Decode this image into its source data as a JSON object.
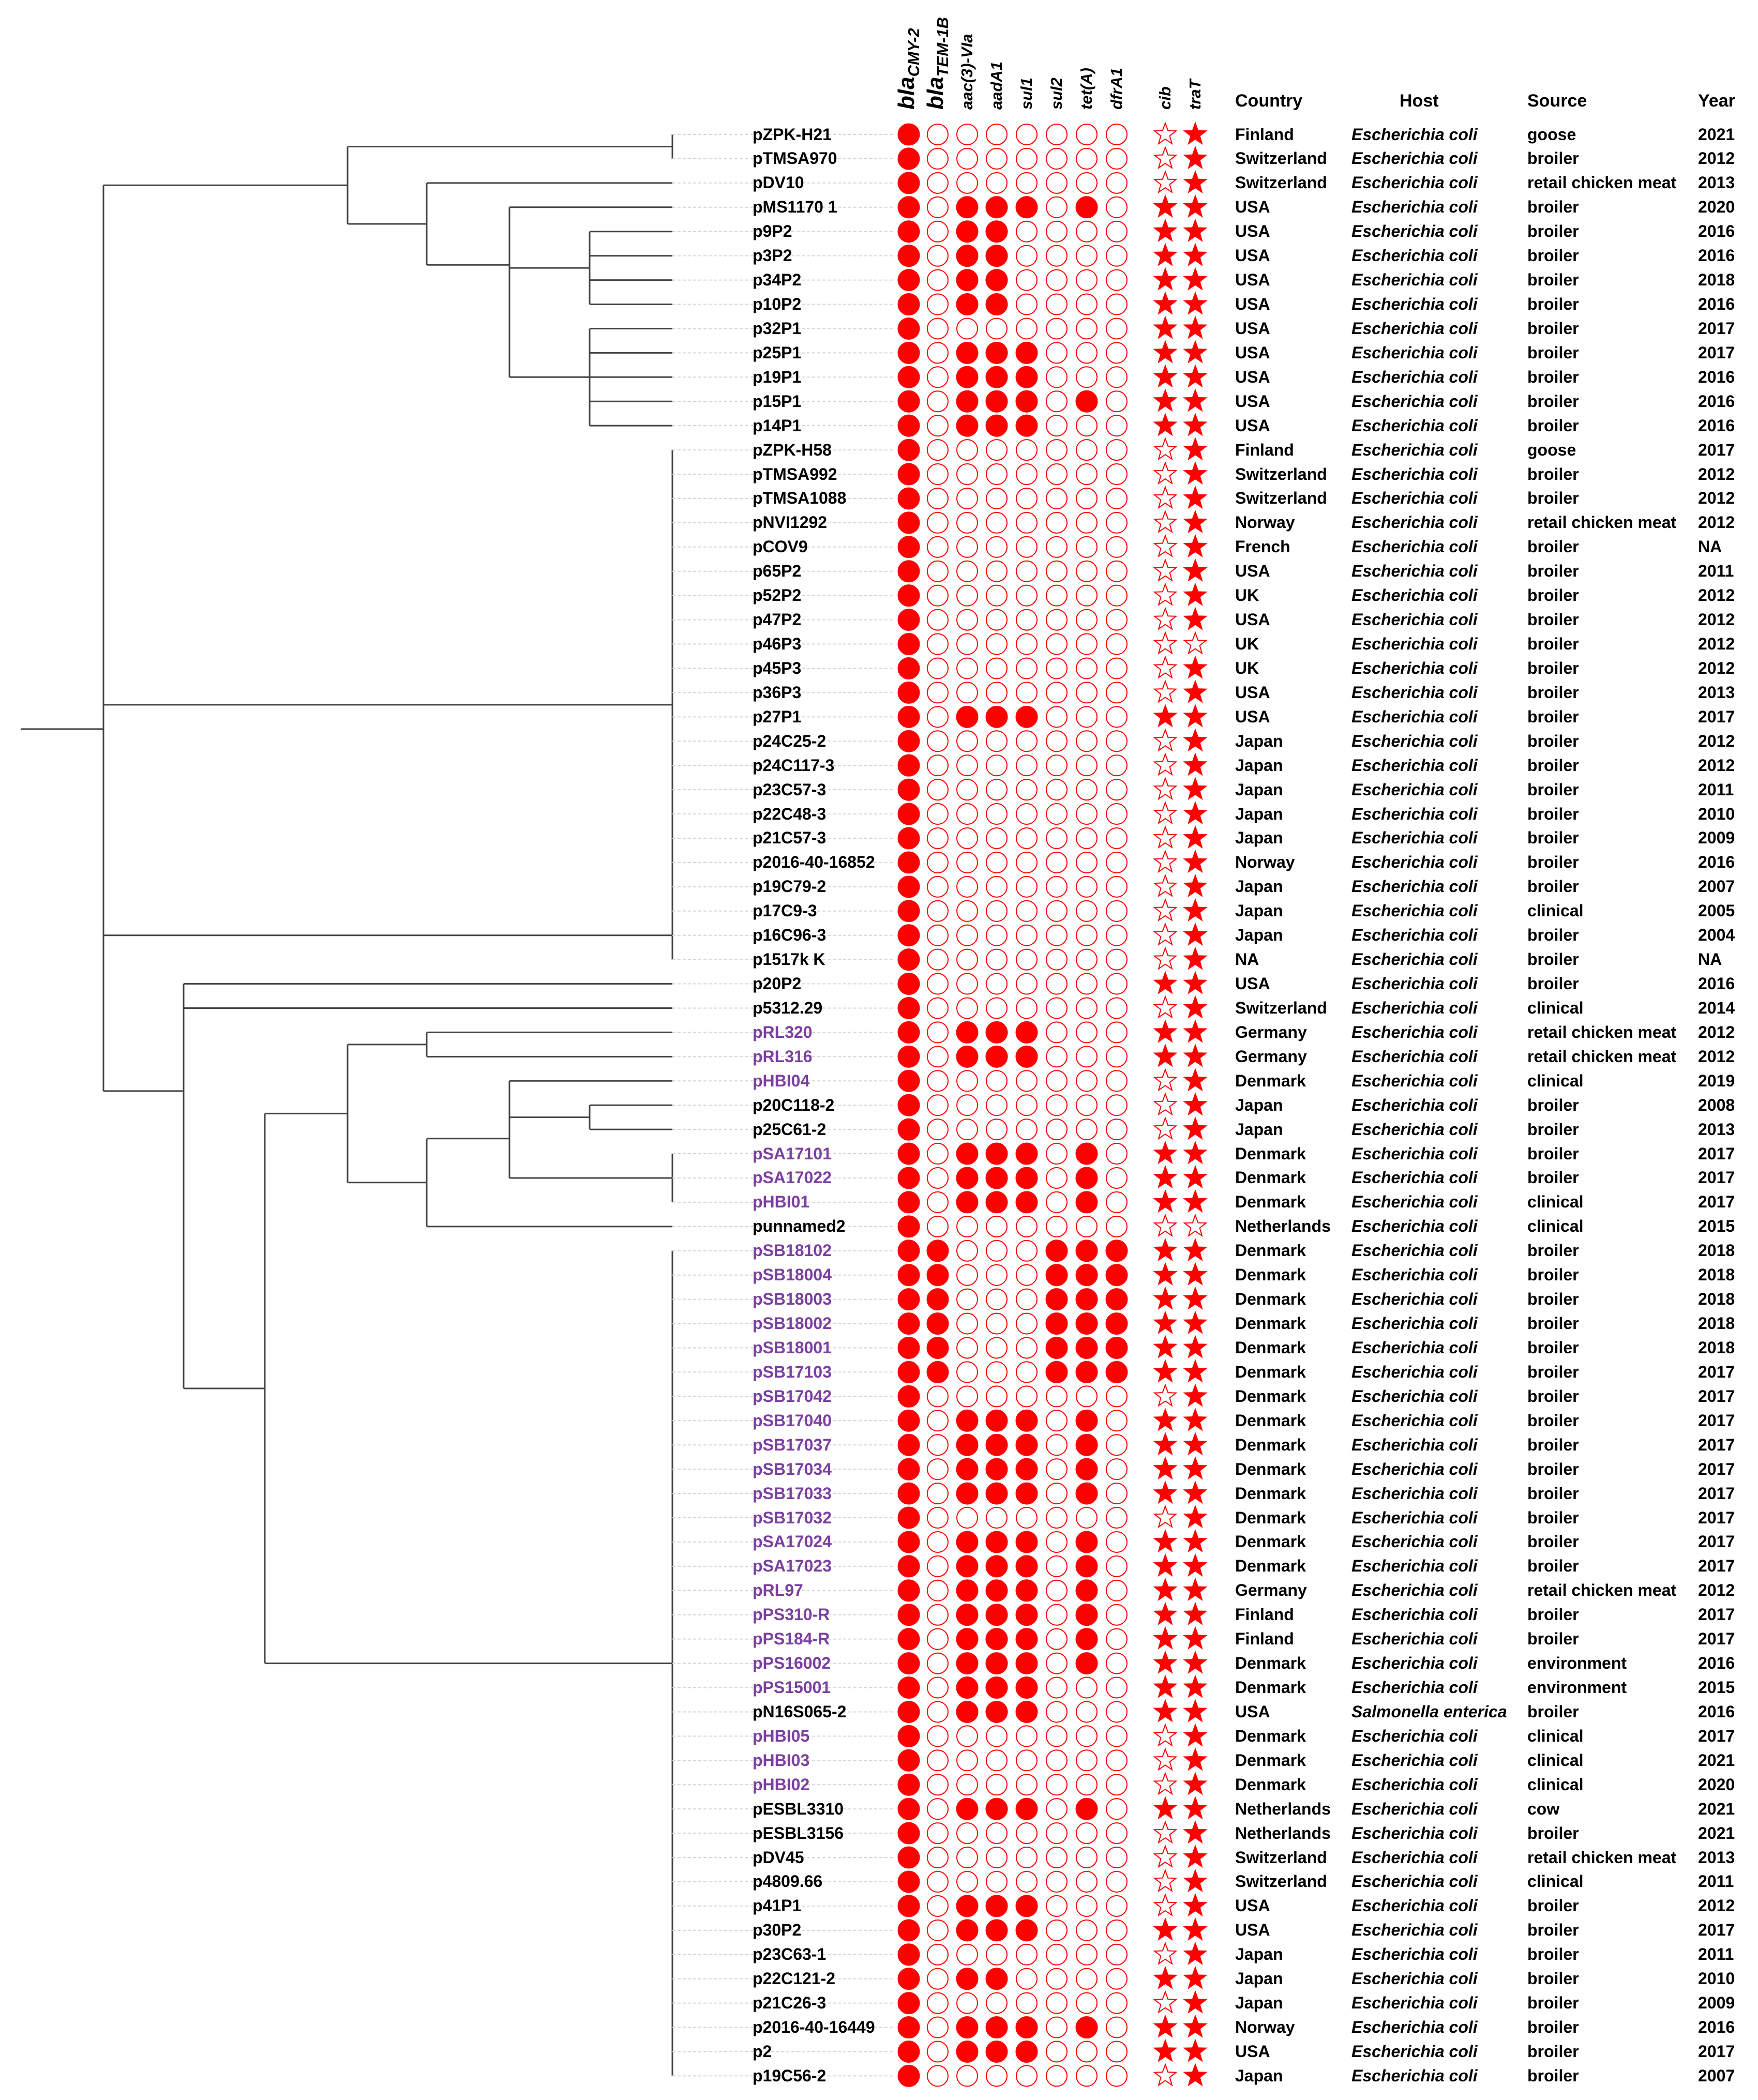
{
  "colors": {
    "mark": "#ff0000",
    "highlight_label": "#7b3fa0",
    "default_label": "#000000",
    "tree_line": "#444444",
    "guide_line": "#d6d6d6"
  },
  "gene_headers": [
    {
      "main": "bla",
      "sub": "CMY-2",
      "size": "large"
    },
    {
      "main": "bla",
      "sub": "TEM-1B",
      "size": "large"
    },
    {
      "main": "aac(3)-VIa",
      "sub": "",
      "size": "small"
    },
    {
      "main": "aadA1",
      "sub": "",
      "size": "small"
    },
    {
      "main": "sul1",
      "sub": "",
      "size": "small"
    },
    {
      "main": "sul2",
      "sub": "",
      "size": "small"
    },
    {
      "main": "tet(A)",
      "sub": "",
      "size": "small"
    },
    {
      "main": "dfrA1",
      "sub": "",
      "size": "small"
    }
  ],
  "marker_headers": [
    "cib",
    "traT"
  ],
  "meta_headers": {
    "country": "Country",
    "host": "Host",
    "source": "Source",
    "year": "Year"
  },
  "icons": {
    "filled": "filled-circle-icon",
    "empty": "empty-circle-icon",
    "star_filled": "filled-star-icon",
    "star_empty": "empty-star-icon"
  },
  "rows": [
    {
      "name": "pZPK-H21",
      "hl": false,
      "genes": "10000000",
      "cib": 0,
      "traT": 1,
      "country": "Finland",
      "host": "Escherichia coli",
      "source": "goose",
      "year": "2021"
    },
    {
      "name": "pTMSA970",
      "hl": false,
      "genes": "10000000",
      "cib": 0,
      "traT": 1,
      "country": "Switzerland",
      "host": "Escherichia coli",
      "source": "broiler",
      "year": "2012"
    },
    {
      "name": "pDV10",
      "hl": false,
      "genes": "10000000",
      "cib": 0,
      "traT": 1,
      "country": "Switzerland",
      "host": "Escherichia coli",
      "source": "retail chicken meat",
      "year": "2013"
    },
    {
      "name": "pMS1170 1",
      "hl": false,
      "genes": "10111010",
      "cib": 1,
      "traT": 1,
      "country": "USA",
      "host": "Escherichia coli",
      "source": "broiler",
      "year": "2020"
    },
    {
      "name": "p9P2",
      "hl": false,
      "genes": "10110000",
      "cib": 1,
      "traT": 1,
      "country": "USA",
      "host": "Escherichia coli",
      "source": "broiler",
      "year": "2016"
    },
    {
      "name": "p3P2",
      "hl": false,
      "genes": "10110000",
      "cib": 1,
      "traT": 1,
      "country": "USA",
      "host": "Escherichia coli",
      "source": "broiler",
      "year": "2016"
    },
    {
      "name": "p34P2",
      "hl": false,
      "genes": "10110000",
      "cib": 1,
      "traT": 1,
      "country": "USA",
      "host": "Escherichia coli",
      "source": "broiler",
      "year": "2018"
    },
    {
      "name": "p10P2",
      "hl": false,
      "genes": "10110000",
      "cib": 1,
      "traT": 1,
      "country": "USA",
      "host": "Escherichia coli",
      "source": "broiler",
      "year": "2016"
    },
    {
      "name": "p32P1",
      "hl": false,
      "genes": "10000000",
      "cib": 1,
      "traT": 1,
      "country": "USA",
      "host": "Escherichia coli",
      "source": "broiler",
      "year": "2017"
    },
    {
      "name": "p25P1",
      "hl": false,
      "genes": "10111000",
      "cib": 1,
      "traT": 1,
      "country": "USA",
      "host": "Escherichia coli",
      "source": "broiler",
      "year": "2017"
    },
    {
      "name": "p19P1",
      "hl": false,
      "genes": "10111000",
      "cib": 1,
      "traT": 1,
      "country": "USA",
      "host": "Escherichia coli",
      "source": "broiler",
      "year": "2016"
    },
    {
      "name": "p15P1",
      "hl": false,
      "genes": "10111010",
      "cib": 1,
      "traT": 1,
      "country": "USA",
      "host": "Escherichia coli",
      "source": "broiler",
      "year": "2016"
    },
    {
      "name": "p14P1",
      "hl": false,
      "genes": "10111000",
      "cib": 1,
      "traT": 1,
      "country": "USA",
      "host": "Escherichia coli",
      "source": "broiler",
      "year": "2016"
    },
    {
      "name": "pZPK-H58",
      "hl": false,
      "genes": "10000000",
      "cib": 0,
      "traT": 1,
      "country": "Finland",
      "host": "Escherichia coli",
      "source": "goose",
      "year": "2017"
    },
    {
      "name": "pTMSA992",
      "hl": false,
      "genes": "10000000",
      "cib": 0,
      "traT": 1,
      "country": "Switzerland",
      "host": "Escherichia coli",
      "source": "broiler",
      "year": "2012"
    },
    {
      "name": "pTMSA1088",
      "hl": false,
      "genes": "10000000",
      "cib": 0,
      "traT": 1,
      "country": "Switzerland",
      "host": "Escherichia coli",
      "source": "broiler",
      "year": "2012"
    },
    {
      "name": "pNVI1292",
      "hl": false,
      "genes": "10000000",
      "cib": 0,
      "traT": 1,
      "country": "Norway",
      "host": "Escherichia coli",
      "source": "retail chicken meat",
      "year": "2012"
    },
    {
      "name": "pCOV9",
      "hl": false,
      "genes": "10000000",
      "cib": 0,
      "traT": 1,
      "country": "French",
      "host": "Escherichia coli",
      "source": "broiler",
      "year": "NA"
    },
    {
      "name": "p65P2",
      "hl": false,
      "genes": "10000000",
      "cib": 0,
      "traT": 1,
      "country": "USA",
      "host": "Escherichia coli",
      "source": "broiler",
      "year": "2011"
    },
    {
      "name": "p52P2",
      "hl": false,
      "genes": "10000000",
      "cib": 0,
      "traT": 1,
      "country": "UK",
      "host": "Escherichia coli",
      "source": "broiler",
      "year": "2012"
    },
    {
      "name": "p47P2",
      "hl": false,
      "genes": "10000000",
      "cib": 0,
      "traT": 1,
      "country": "USA",
      "host": "Escherichia coli",
      "source": "broiler",
      "year": "2012"
    },
    {
      "name": "p46P3",
      "hl": false,
      "genes": "10000000",
      "cib": 0,
      "traT": 0,
      "country": "UK",
      "host": "Escherichia coli",
      "source": "broiler",
      "year": "2012"
    },
    {
      "name": "p45P3",
      "hl": false,
      "genes": "10000000",
      "cib": 0,
      "traT": 1,
      "country": "UK",
      "host": "Escherichia coli",
      "source": "broiler",
      "year": "2012"
    },
    {
      "name": "p36P3",
      "hl": false,
      "genes": "10000000",
      "cib": 0,
      "traT": 1,
      "country": "USA",
      "host": "Escherichia coli",
      "source": "broiler",
      "year": "2013"
    },
    {
      "name": "p27P1",
      "hl": false,
      "genes": "10111000",
      "cib": 1,
      "traT": 1,
      "country": "USA",
      "host": "Escherichia coli",
      "source": "broiler",
      "year": "2017"
    },
    {
      "name": "p24C25-2",
      "hl": false,
      "genes": "10000000",
      "cib": 0,
      "traT": 1,
      "country": "Japan",
      "host": "Escherichia coli",
      "source": "broiler",
      "year": "2012"
    },
    {
      "name": "p24C117-3",
      "hl": false,
      "genes": "10000000",
      "cib": 0,
      "traT": 1,
      "country": "Japan",
      "host": "Escherichia coli",
      "source": "broiler",
      "year": "2012"
    },
    {
      "name": "p23C57-3",
      "hl": false,
      "genes": "10000000",
      "cib": 0,
      "traT": 1,
      "country": "Japan",
      "host": "Escherichia coli",
      "source": "broiler",
      "year": "2011"
    },
    {
      "name": "p22C48-3",
      "hl": false,
      "genes": "10000000",
      "cib": 0,
      "traT": 1,
      "country": "Japan",
      "host": "Escherichia coli",
      "source": "broiler",
      "year": "2010"
    },
    {
      "name": "p21C57-3",
      "hl": false,
      "genes": "10000000",
      "cib": 0,
      "traT": 1,
      "country": "Japan",
      "host": "Escherichia coli",
      "source": "broiler",
      "year": "2009"
    },
    {
      "name": "p2016-40-16852",
      "hl": false,
      "genes": "10000000",
      "cib": 0,
      "traT": 1,
      "country": "Norway",
      "host": "Escherichia coli",
      "source": "broiler",
      "year": "2016"
    },
    {
      "name": "p19C79-2",
      "hl": false,
      "genes": "10000000",
      "cib": 0,
      "traT": 1,
      "country": "Japan",
      "host": "Escherichia coli",
      "source": "broiler",
      "year": "2007"
    },
    {
      "name": "p17C9-3",
      "hl": false,
      "genes": "10000000",
      "cib": 0,
      "traT": 1,
      "country": "Japan",
      "host": "Escherichia coli",
      "source": "clinical",
      "year": "2005"
    },
    {
      "name": "p16C96-3",
      "hl": false,
      "genes": "10000000",
      "cib": 0,
      "traT": 1,
      "country": "Japan",
      "host": "Escherichia coli",
      "source": "broiler",
      "year": "2004"
    },
    {
      "name": "p1517k K",
      "hl": false,
      "genes": "10000000",
      "cib": 0,
      "traT": 1,
      "country": "NA",
      "host": "Escherichia coli",
      "source": "broiler",
      "year": "NA"
    },
    {
      "name": "p20P2",
      "hl": false,
      "genes": "10000000",
      "cib": 1,
      "traT": 1,
      "country": "USA",
      "host": "Escherichia coli",
      "source": "broiler",
      "year": "2016"
    },
    {
      "name": "p5312.29",
      "hl": false,
      "genes": "10000000",
      "cib": 0,
      "traT": 1,
      "country": "Switzerland",
      "host": "Escherichia coli",
      "source": "clinical",
      "year": "2014"
    },
    {
      "name": "pRL320",
      "hl": true,
      "genes": "10111000",
      "cib": 1,
      "traT": 1,
      "country": "Germany",
      "host": "Escherichia coli",
      "source": "retail chicken meat",
      "year": "2012"
    },
    {
      "name": "pRL316",
      "hl": true,
      "genes": "10111000",
      "cib": 1,
      "traT": 1,
      "country": "Germany",
      "host": "Escherichia coli",
      "source": "retail chicken meat",
      "year": "2012"
    },
    {
      "name": "pHBI04",
      "hl": true,
      "genes": "10000000",
      "cib": 0,
      "traT": 1,
      "country": "Denmark",
      "host": "Escherichia coli",
      "source": "clinical",
      "year": "2019"
    },
    {
      "name": "p20C118-2",
      "hl": false,
      "genes": "10000000",
      "cib": 0,
      "traT": 1,
      "country": "Japan",
      "host": "Escherichia coli",
      "source": "broiler",
      "year": "2008"
    },
    {
      "name": "p25C61-2",
      "hl": false,
      "genes": "10000000",
      "cib": 0,
      "traT": 1,
      "country": "Japan",
      "host": "Escherichia coli",
      "source": "broiler",
      "year": "2013"
    },
    {
      "name": "pSA17101",
      "hl": true,
      "genes": "10111010",
      "cib": 1,
      "traT": 1,
      "country": "Denmark",
      "host": "Escherichia coli",
      "source": "broiler",
      "year": "2017"
    },
    {
      "name": "pSA17022",
      "hl": true,
      "genes": "10111010",
      "cib": 1,
      "traT": 1,
      "country": "Denmark",
      "host": "Escherichia coli",
      "source": "broiler",
      "year": "2017"
    },
    {
      "name": "pHBI01",
      "hl": true,
      "genes": "10111010",
      "cib": 1,
      "traT": 1,
      "country": "Denmark",
      "host": "Escherichia coli",
      "source": "clinical",
      "year": "2017"
    },
    {
      "name": "punnamed2",
      "hl": false,
      "genes": "10000000",
      "cib": 0,
      "traT": 0,
      "country": "Netherlands",
      "host": "Escherichia coli",
      "source": "clinical",
      "year": "2015"
    },
    {
      "name": "pSB18102",
      "hl": true,
      "genes": "11000111",
      "cib": 1,
      "traT": 1,
      "country": "Denmark",
      "host": "Escherichia coli",
      "source": "broiler",
      "year": "2018"
    },
    {
      "name": "pSB18004",
      "hl": true,
      "genes": "11000111",
      "cib": 1,
      "traT": 1,
      "country": "Denmark",
      "host": "Escherichia coli",
      "source": "broiler",
      "year": "2018"
    },
    {
      "name": "pSB18003",
      "hl": true,
      "genes": "11000111",
      "cib": 1,
      "traT": 1,
      "country": "Denmark",
      "host": "Escherichia coli",
      "source": "broiler",
      "year": "2018"
    },
    {
      "name": "pSB18002",
      "hl": true,
      "genes": "11000111",
      "cib": 1,
      "traT": 1,
      "country": "Denmark",
      "host": "Escherichia coli",
      "source": "broiler",
      "year": "2018"
    },
    {
      "name": "pSB18001",
      "hl": true,
      "genes": "11000111",
      "cib": 1,
      "traT": 1,
      "country": "Denmark",
      "host": "Escherichia coli",
      "source": "broiler",
      "year": "2018"
    },
    {
      "name": "pSB17103",
      "hl": true,
      "genes": "11000111",
      "cib": 1,
      "traT": 1,
      "country": "Denmark",
      "host": "Escherichia coli",
      "source": "broiler",
      "year": "2017"
    },
    {
      "name": "pSB17042",
      "hl": true,
      "genes": "10000000",
      "cib": 0,
      "traT": 1,
      "country": "Denmark",
      "host": "Escherichia coli",
      "source": "broiler",
      "year": "2017"
    },
    {
      "name": "pSB17040",
      "hl": true,
      "genes": "10111010",
      "cib": 1,
      "traT": 1,
      "country": "Denmark",
      "host": "Escherichia coli",
      "source": "broiler",
      "year": "2017"
    },
    {
      "name": "pSB17037",
      "hl": true,
      "genes": "10111010",
      "cib": 1,
      "traT": 1,
      "country": "Denmark",
      "host": "Escherichia coli",
      "source": "broiler",
      "year": "2017"
    },
    {
      "name": "pSB17034",
      "hl": true,
      "genes": "10111010",
      "cib": 1,
      "traT": 1,
      "country": "Denmark",
      "host": "Escherichia coli",
      "source": "broiler",
      "year": "2017"
    },
    {
      "name": "pSB17033",
      "hl": true,
      "genes": "10111010",
      "cib": 1,
      "traT": 1,
      "country": "Denmark",
      "host": "Escherichia coli",
      "source": "broiler",
      "year": "2017"
    },
    {
      "name": "pSB17032",
      "hl": true,
      "genes": "10000000",
      "cib": 0,
      "traT": 1,
      "country": "Denmark",
      "host": "Escherichia coli",
      "source": "broiler",
      "year": "2017"
    },
    {
      "name": "pSA17024",
      "hl": true,
      "genes": "10111010",
      "cib": 1,
      "traT": 1,
      "country": "Denmark",
      "host": "Escherichia coli",
      "source": "broiler",
      "year": "2017"
    },
    {
      "name": "pSA17023",
      "hl": true,
      "genes": "10111010",
      "cib": 1,
      "traT": 1,
      "country": "Denmark",
      "host": "Escherichia coli",
      "source": "broiler",
      "year": "2017"
    },
    {
      "name": "pRL97",
      "hl": true,
      "genes": "10111010",
      "cib": 1,
      "traT": 1,
      "country": "Germany",
      "host": "Escherichia coli",
      "source": "retail chicken meat",
      "year": "2012"
    },
    {
      "name": "pPS310-R",
      "hl": true,
      "genes": "10111010",
      "cib": 1,
      "traT": 1,
      "country": "Finland",
      "host": "Escherichia coli",
      "source": "broiler",
      "year": "2017"
    },
    {
      "name": "pPS184-R",
      "hl": true,
      "genes": "10111010",
      "cib": 1,
      "traT": 1,
      "country": "Finland",
      "host": "Escherichia coli",
      "source": "broiler",
      "year": "2017"
    },
    {
      "name": "pPS16002",
      "hl": true,
      "genes": "10111010",
      "cib": 1,
      "traT": 1,
      "country": "Denmark",
      "host": "Escherichia coli",
      "source": "environment",
      "year": "2016"
    },
    {
      "name": "pPS15001",
      "hl": true,
      "genes": "10111000",
      "cib": 1,
      "traT": 1,
      "country": "Denmark",
      "host": "Escherichia coli",
      "source": "environment",
      "year": "2015"
    },
    {
      "name": "pN16S065-2",
      "hl": false,
      "genes": "10111000",
      "cib": 1,
      "traT": 1,
      "country": "USA",
      "host": "Salmonella enterica",
      "source": "broiler",
      "year": "2016"
    },
    {
      "name": "pHBI05",
      "hl": true,
      "genes": "10000000",
      "cib": 0,
      "traT": 1,
      "country": "Denmark",
      "host": "Escherichia coli",
      "source": "clinical",
      "year": "2017"
    },
    {
      "name": "pHBI03",
      "hl": true,
      "genes": "10000000",
      "cib": 0,
      "traT": 1,
      "country": "Denmark",
      "host": "Escherichia coli",
      "source": "clinical",
      "year": "2021"
    },
    {
      "name": "pHBI02",
      "hl": true,
      "genes": "10000000",
      "cib": 0,
      "traT": 1,
      "country": "Denmark",
      "host": "Escherichia coli",
      "source": "clinical",
      "year": "2020"
    },
    {
      "name": "pESBL3310",
      "hl": false,
      "genes": "10111010",
      "cib": 1,
      "traT": 1,
      "country": "Netherlands",
      "host": "Escherichia coli",
      "source": "cow",
      "year": "2021"
    },
    {
      "name": "pESBL3156",
      "hl": false,
      "genes": "10000000",
      "cib": 0,
      "traT": 1,
      "country": "Netherlands",
      "host": "Escherichia coli",
      "source": "broiler",
      "year": "2021"
    },
    {
      "name": "pDV45",
      "hl": false,
      "genes": "10000000",
      "cib": 0,
      "traT": 1,
      "country": "Switzerland",
      "host": "Escherichia coli",
      "source": "retail chicken meat",
      "year": "2013"
    },
    {
      "name": "p4809.66",
      "hl": false,
      "genes": "10000000",
      "cib": 0,
      "traT": 1,
      "country": "Switzerland",
      "host": "Escherichia coli",
      "source": "clinical",
      "year": "2011"
    },
    {
      "name": "p41P1",
      "hl": false,
      "genes": "10111000",
      "cib": 0,
      "traT": 1,
      "country": "USA",
      "host": "Escherichia coli",
      "source": "broiler",
      "year": "2012"
    },
    {
      "name": "p30P2",
      "hl": false,
      "genes": "10111000",
      "cib": 1,
      "traT": 1,
      "country": "USA",
      "host": "Escherichia coli",
      "source": "broiler",
      "year": "2017"
    },
    {
      "name": "p23C63-1",
      "hl": false,
      "genes": "10000000",
      "cib": 0,
      "traT": 1,
      "country": "Japan",
      "host": "Escherichia coli",
      "source": "broiler",
      "year": "2011"
    },
    {
      "name": "p22C121-2",
      "hl": false,
      "genes": "10110000",
      "cib": 1,
      "traT": 1,
      "country": "Japan",
      "host": "Escherichia coli",
      "source": "broiler",
      "year": "2010"
    },
    {
      "name": "p21C26-3",
      "hl": false,
      "genes": "10000000",
      "cib": 0,
      "traT": 1,
      "country": "Japan",
      "host": "Escherichia coli",
      "source": "broiler",
      "year": "2009"
    },
    {
      "name": "p2016-40-16449",
      "hl": false,
      "genes": "10111010",
      "cib": 1,
      "traT": 1,
      "country": "Norway",
      "host": "Escherichia coli",
      "source": "broiler",
      "year": "2016"
    },
    {
      "name": "p2",
      "hl": false,
      "genes": "10111000",
      "cib": 1,
      "traT": 1,
      "country": "USA",
      "host": "Escherichia coli",
      "source": "broiler",
      "year": "2017"
    },
    {
      "name": "p19C56-2",
      "hl": false,
      "genes": "10000000",
      "cib": 0,
      "traT": 1,
      "country": "Japan",
      "host": "Escherichia coli",
      "source": "broiler",
      "year": "2007"
    }
  ]
}
